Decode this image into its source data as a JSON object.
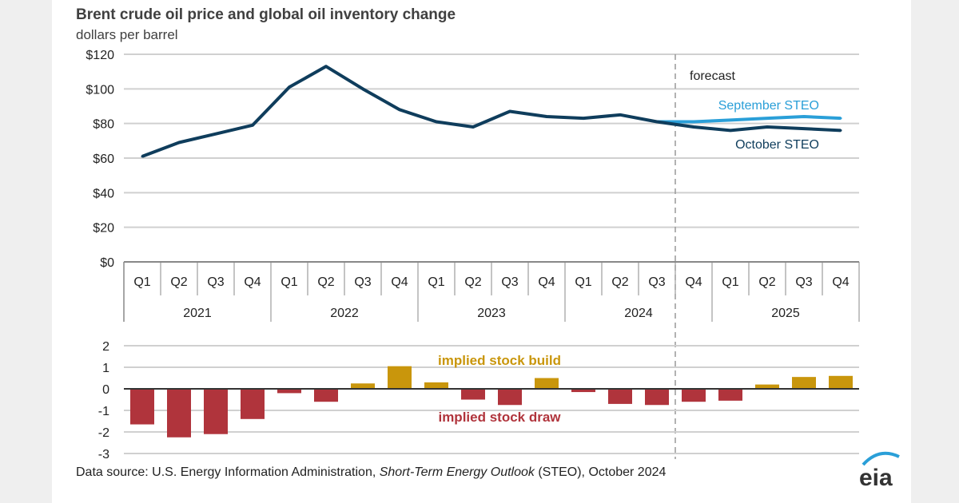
{
  "chart_data": [
    {
      "type": "line",
      "title": "Brent crude oil price and global oil inventory change",
      "subtitle": "dollars per barrel",
      "ylim": [
        0,
        120
      ],
      "yticks": [
        "$0",
        "$20",
        "$40",
        "$60",
        "$80",
        "$100",
        "$120"
      ],
      "ytick_values": [
        0,
        20,
        40,
        60,
        80,
        100,
        120
      ],
      "quarters": [
        "Q1",
        "Q2",
        "Q3",
        "Q4",
        "Q1",
        "Q2",
        "Q3",
        "Q4",
        "Q1",
        "Q2",
        "Q3",
        "Q4",
        "Q1",
        "Q2",
        "Q3",
        "Q4",
        "Q1",
        "Q2",
        "Q3",
        "Q4"
      ],
      "years": [
        "2021",
        "2022",
        "2023",
        "2024",
        "2025"
      ],
      "forecast_label": "forecast",
      "forecast_start_index": 15,
      "grid": true,
      "series": [
        {
          "name": "September STEO",
          "color": "#2a9fd8",
          "start_index": 14,
          "values": [
            81,
            81,
            82,
            83,
            84,
            83
          ]
        },
        {
          "name": "October STEO",
          "color": "#0f3d5c",
          "start_index": 0,
          "values": [
            61,
            69,
            74,
            79,
            101,
            113,
            100,
            88,
            81,
            78,
            87,
            84,
            83,
            85,
            81,
            78,
            76,
            78,
            77,
            76
          ]
        }
      ]
    },
    {
      "type": "bar",
      "ylim": [
        -3,
        2
      ],
      "yticks": [
        "-3",
        "-2",
        "-1",
        "0",
        "1",
        "2"
      ],
      "ytick_values": [
        -3,
        -2,
        -1,
        0,
        1,
        2
      ],
      "values": [
        -1.65,
        -2.25,
        -2.1,
        -1.4,
        -0.2,
        -0.6,
        0.25,
        1.05,
        0.3,
        -0.5,
        -0.75,
        0.5,
        -0.15,
        -0.7,
        -0.75,
        -0.6,
        -0.55,
        0.2,
        0.55,
        0.6
      ],
      "annotations": {
        "build": "implied stock  build",
        "draw": "implied stock draw"
      },
      "colors": {
        "build": "#c9960c",
        "draw": "#b0343c"
      }
    }
  ],
  "source": {
    "prefix": "Data source: U.S. Energy Information Administration, ",
    "italic": "Short-Term Energy Outlook",
    "suffix": " (STEO), October 2024"
  },
  "logo": "eia"
}
